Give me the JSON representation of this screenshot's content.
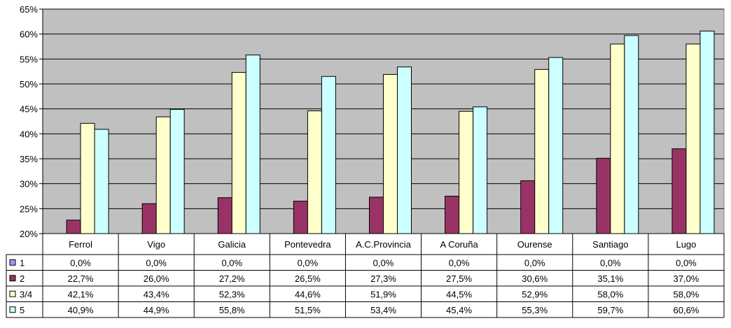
{
  "chart_data": {
    "type": "bar",
    "title": "",
    "xlabel": "",
    "ylabel": "",
    "ylim": [
      20,
      65
    ],
    "yticks": [
      "20%",
      "25%",
      "30%",
      "35%",
      "40%",
      "45%",
      "50%",
      "55%",
      "60%",
      "65%"
    ],
    "grid": true,
    "legend": "data-table-left",
    "categories": [
      "Ferrol",
      "Vigo",
      "Galicia",
      "Pontevedra",
      "A.C.Provincia",
      "A Coruña",
      "Ourense",
      "Santiago",
      "Lugo"
    ],
    "series": [
      {
        "name": "1",
        "color": "#9999ff",
        "values": [
          0.0,
          0.0,
          0.0,
          0.0,
          0.0,
          0.0,
          0.0,
          0.0,
          0.0
        ],
        "labels": [
          "0,0%",
          "0,0%",
          "0,0%",
          "0,0%",
          "0,0%",
          "0,0%",
          "0,0%",
          "0,0%",
          "0,0%"
        ]
      },
      {
        "name": "2",
        "color": "#993366",
        "values": [
          22.7,
          26.0,
          27.2,
          26.5,
          27.3,
          27.5,
          30.6,
          35.1,
          37.0
        ],
        "labels": [
          "22,7%",
          "26,0%",
          "27,2%",
          "26,5%",
          "27,3%",
          "27,5%",
          "30,6%",
          "35,1%",
          "37,0%"
        ]
      },
      {
        "name": "3/4",
        "color": "#ffffcc",
        "values": [
          42.1,
          43.4,
          52.3,
          44.6,
          51.9,
          44.5,
          52.9,
          58.0,
          58.0
        ],
        "labels": [
          "42,1%",
          "43,4%",
          "52,3%",
          "44,6%",
          "51,9%",
          "44,5%",
          "52,9%",
          "58,0%",
          "58,0%"
        ]
      },
      {
        "name": "5",
        "color": "#ccffff",
        "values": [
          40.9,
          44.9,
          55.8,
          51.5,
          53.4,
          45.4,
          55.3,
          59.7,
          60.6
        ],
        "labels": [
          "40,9%",
          "44,9%",
          "55,8%",
          "51,5%",
          "53,4%",
          "45,4%",
          "55,3%",
          "59,7%",
          "60,6%"
        ]
      }
    ],
    "colors": {
      "plot_background": "#c0c0c0",
      "gridline": "#000000",
      "bar_outline": "#000000"
    }
  }
}
